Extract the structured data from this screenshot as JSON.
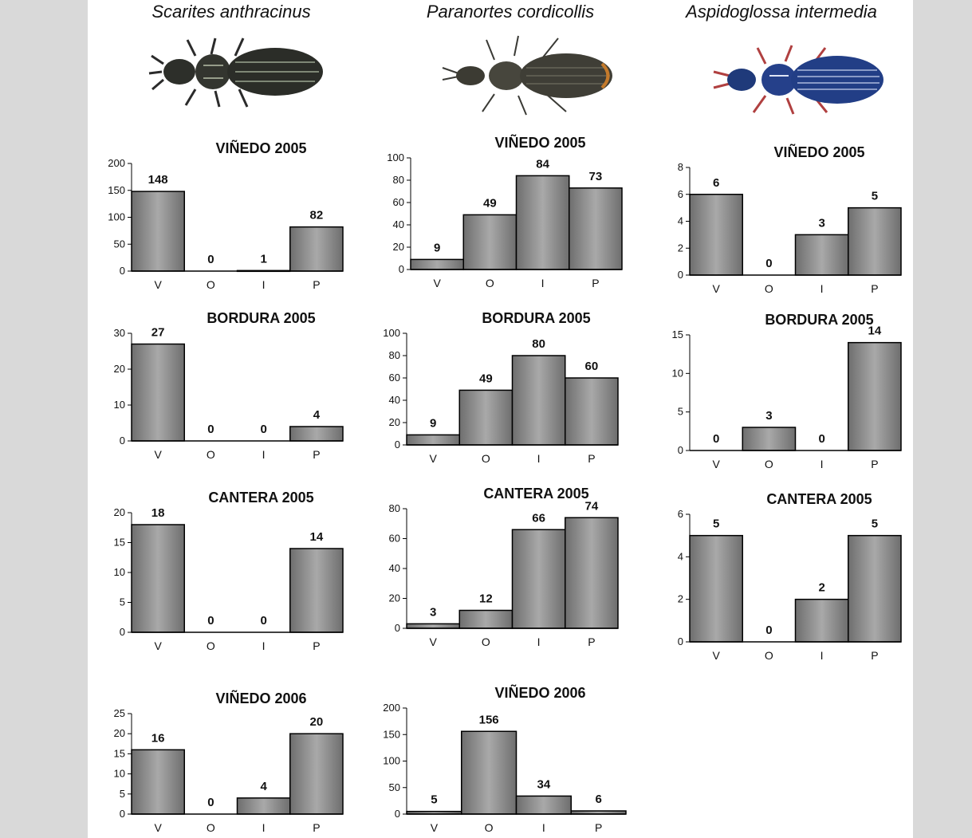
{
  "species": [
    {
      "name": "Scarites anthracinus",
      "image": "beetle-scarites"
    },
    {
      "name": "Paranortes cordicollis",
      "image": "beetle-paranortes"
    },
    {
      "name": "Aspidoglossa intermedia",
      "image": "beetle-aspidoglossa"
    }
  ],
  "colors": {
    "bar_fill": "#8c8c8c",
    "bar_stroke": "#000000",
    "page_bg": "#ffffff",
    "side_bg": "#d9d9d9"
  },
  "chart_data": [
    {
      "type": "bar",
      "species": "Scarites anthracinus",
      "title": "VIÑEDO 2005",
      "categories": [
        "V",
        "O",
        "I",
        "P"
      ],
      "values": [
        148,
        0,
        1,
        82
      ],
      "data_labels": [
        "148",
        "0",
        "1",
        "82"
      ],
      "ylim": [
        0,
        200
      ],
      "yticks": [
        0,
        50,
        100,
        150,
        200
      ],
      "xlabel": "",
      "ylabel": ""
    },
    {
      "type": "bar",
      "species": "Scarites anthracinus",
      "title": "BORDURA 2005",
      "categories": [
        "V",
        "O",
        "I",
        "P"
      ],
      "values": [
        27,
        0,
        0,
        4
      ],
      "data_labels": [
        "27",
        "0",
        "0",
        "4"
      ],
      "ylim": [
        0,
        30
      ],
      "yticks": [
        0,
        10,
        20,
        30
      ],
      "xlabel": "",
      "ylabel": ""
    },
    {
      "type": "bar",
      "species": "Scarites anthracinus",
      "title": "CANTERA 2005",
      "categories": [
        "V",
        "O",
        "I",
        "P"
      ],
      "values": [
        18,
        0,
        0,
        14
      ],
      "data_labels": [
        "18",
        "0",
        "0",
        "14"
      ],
      "ylim": [
        0,
        20
      ],
      "yticks": [
        0,
        5,
        10,
        15,
        20
      ],
      "xlabel": "",
      "ylabel": ""
    },
    {
      "type": "bar",
      "species": "Scarites anthracinus",
      "title": "VIÑEDO 2006",
      "categories": [
        "V",
        "O",
        "I",
        "P"
      ],
      "values": [
        16,
        0,
        4,
        20
      ],
      "data_labels": [
        "16",
        "0",
        "4",
        "20"
      ],
      "ylim": [
        0,
        25
      ],
      "yticks": [
        0,
        5,
        10,
        15,
        20,
        25
      ],
      "xlabel": "",
      "ylabel": ""
    },
    {
      "type": "bar",
      "species": "Paranortes cordicollis",
      "title": "VIÑEDO 2005",
      "categories": [
        "V",
        "O",
        "I",
        "P"
      ],
      "values": [
        9,
        49,
        84,
        73
      ],
      "data_labels": [
        "9",
        "49",
        "84",
        "73"
      ],
      "ylim": [
        0,
        100
      ],
      "yticks": [
        0,
        20,
        40,
        60,
        80,
        100
      ],
      "xlabel": "",
      "ylabel": ""
    },
    {
      "type": "bar",
      "species": "Paranortes cordicollis",
      "title": "BORDURA 2005",
      "categories": [
        "V",
        "O",
        "I",
        "P"
      ],
      "values": [
        9,
        49,
        80,
        60
      ],
      "data_labels": [
        "9",
        "49",
        "80",
        "60"
      ],
      "ylim": [
        0,
        100
      ],
      "yticks": [
        0,
        20,
        40,
        60,
        80,
        100
      ],
      "xlabel": "",
      "ylabel": ""
    },
    {
      "type": "bar",
      "species": "Paranortes cordicollis",
      "title": "CANTERA 2005",
      "categories": [
        "V",
        "O",
        "I",
        "P"
      ],
      "values": [
        3,
        12,
        66,
        74
      ],
      "data_labels": [
        "3",
        "12",
        "66",
        "74"
      ],
      "ylim": [
        0,
        80
      ],
      "yticks": [
        0,
        20,
        40,
        60,
        80
      ],
      "xlabel": "",
      "ylabel": ""
    },
    {
      "type": "bar",
      "species": "Paranortes cordicollis",
      "title": "VIÑEDO 2006",
      "categories": [
        "V",
        "O",
        "I",
        "P"
      ],
      "values": [
        5,
        156,
        34,
        6
      ],
      "data_labels": [
        "5",
        "156",
        "34",
        "6"
      ],
      "ylim": [
        0,
        200
      ],
      "yticks": [
        0,
        50,
        100,
        150,
        200
      ],
      "xlabel": "",
      "ylabel": ""
    },
    {
      "type": "bar",
      "species": "Aspidoglossa intermedia",
      "title": "VIÑEDO 2005",
      "categories": [
        "V",
        "O",
        "I",
        "P"
      ],
      "values": [
        6,
        0,
        3,
        5
      ],
      "data_labels": [
        "6",
        "0",
        "3",
        "5"
      ],
      "ylim": [
        0,
        8
      ],
      "yticks": [
        0,
        2,
        4,
        6,
        8
      ],
      "xlabel": "",
      "ylabel": ""
    },
    {
      "type": "bar",
      "species": "Aspidoglossa intermedia",
      "title": "BORDURA 2005",
      "categories": [
        "V",
        "O",
        "I",
        "P"
      ],
      "values": [
        0,
        3,
        0,
        14
      ],
      "data_labels": [
        "0",
        "3",
        "0",
        "14"
      ],
      "ylim": [
        0,
        15
      ],
      "yticks": [
        0,
        5,
        10,
        15
      ],
      "xlabel": "",
      "ylabel": ""
    },
    {
      "type": "bar",
      "species": "Aspidoglossa intermedia",
      "title": "CANTERA 2005",
      "categories": [
        "V",
        "O",
        "I",
        "P"
      ],
      "values": [
        5,
        0,
        2,
        5
      ],
      "data_labels": [
        "5",
        "0",
        "2",
        "5"
      ],
      "ylim": [
        0,
        6
      ],
      "yticks": [
        0,
        2,
        4,
        6
      ],
      "xlabel": "",
      "ylabel": ""
    }
  ]
}
